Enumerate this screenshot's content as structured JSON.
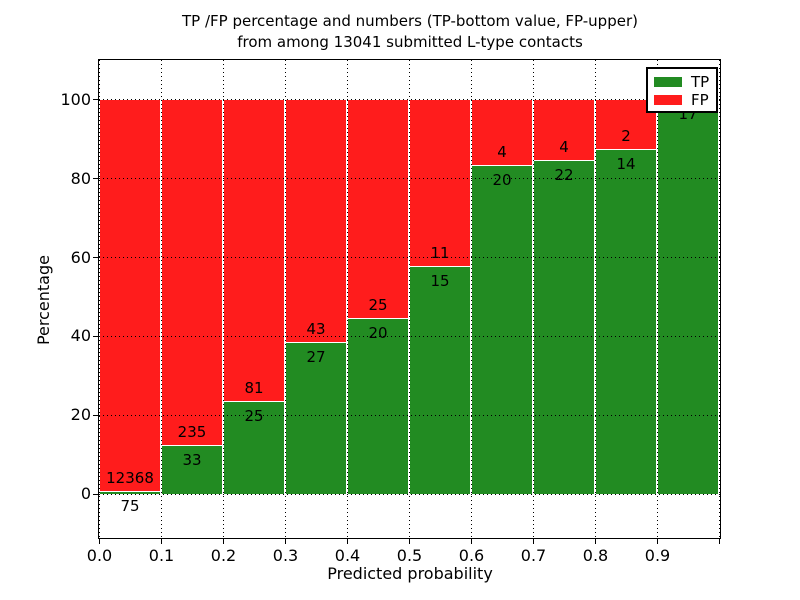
{
  "title": {
    "line1": "TP /FP percentage and numbers (TP-bottom value, FP-upper)",
    "line2": "from among 13041 submitted L-type contacts"
  },
  "axes": {
    "xlabel": "Predicted probability",
    "ylabel": "Percentage",
    "xticks": [
      {
        "value": 0.0,
        "label": "0.0"
      },
      {
        "value": 0.1,
        "label": "0.1"
      },
      {
        "value": 0.2,
        "label": "0.2"
      },
      {
        "value": 0.3,
        "label": "0.3"
      },
      {
        "value": 0.4,
        "label": "0.4"
      },
      {
        "value": 0.5,
        "label": "0.5"
      },
      {
        "value": 0.6,
        "label": "0.6"
      },
      {
        "value": 0.7,
        "label": "0.7"
      },
      {
        "value": 0.8,
        "label": "0.8"
      },
      {
        "value": 0.9,
        "label": "0.9"
      },
      {
        "value": 1.0,
        "label": ""
      }
    ],
    "yticks": [
      {
        "value": 0,
        "label": "0"
      },
      {
        "value": 20,
        "label": "20"
      },
      {
        "value": 40,
        "label": "40"
      },
      {
        "value": 60,
        "label": "60"
      },
      {
        "value": 80,
        "label": "80"
      },
      {
        "value": 100,
        "label": "100"
      }
    ]
  },
  "legend": {
    "items": [
      {
        "label": "TP",
        "color": "#228b22"
      },
      {
        "label": "FP",
        "color": "#ff1c1c"
      }
    ],
    "position": "upper right"
  },
  "chart_data": {
    "type": "bar",
    "stacked": true,
    "normalized_to": 100,
    "title": "TP /FP percentage and numbers (TP-bottom value, FP-upper) from among 13041 submitted L-type contacts",
    "xlabel": "Predicted probability",
    "ylabel": "Percentage",
    "total_contacts": 13041,
    "bin_width": 0.1,
    "bin_starts": [
      0.0,
      0.1,
      0.2,
      0.3,
      0.4,
      0.5,
      0.6,
      0.7,
      0.8,
      0.9
    ],
    "categories": [
      "0.0-0.1",
      "0.1-0.2",
      "0.2-0.3",
      "0.3-0.4",
      "0.4-0.5",
      "0.5-0.6",
      "0.6-0.7",
      "0.7-0.8",
      "0.8-0.9",
      "0.9-1.0"
    ],
    "series": [
      {
        "name": "TP",
        "color": "#228b22",
        "counts": [
          75,
          33,
          25,
          27,
          20,
          15,
          20,
          22,
          14,
          17
        ]
      },
      {
        "name": "FP",
        "color": "#ff1c1c",
        "counts": [
          12368,
          235,
          81,
          43,
          25,
          11,
          4,
          4,
          2,
          0
        ]
      }
    ],
    "tp_percent_of_bin": [
      0.6,
      12.3,
      23.6,
      38.6,
      44.4,
      57.7,
      83.3,
      84.6,
      87.5,
      100.0
    ],
    "bar_labels": {
      "tp": [
        "75",
        "33",
        "25",
        "27",
        "20",
        "15",
        "20",
        "22",
        "14",
        "17"
      ],
      "fp": [
        "12368",
        "235",
        "81",
        "43",
        "25",
        "11",
        "4",
        "4",
        "2",
        ""
      ]
    },
    "xlim": [
      0,
      1
    ],
    "ylim_data": [
      0,
      100
    ],
    "ylim_display": [
      -11,
      110
    ],
    "grid": true,
    "grid_style": "dotted",
    "legend_position": "upper right"
  }
}
